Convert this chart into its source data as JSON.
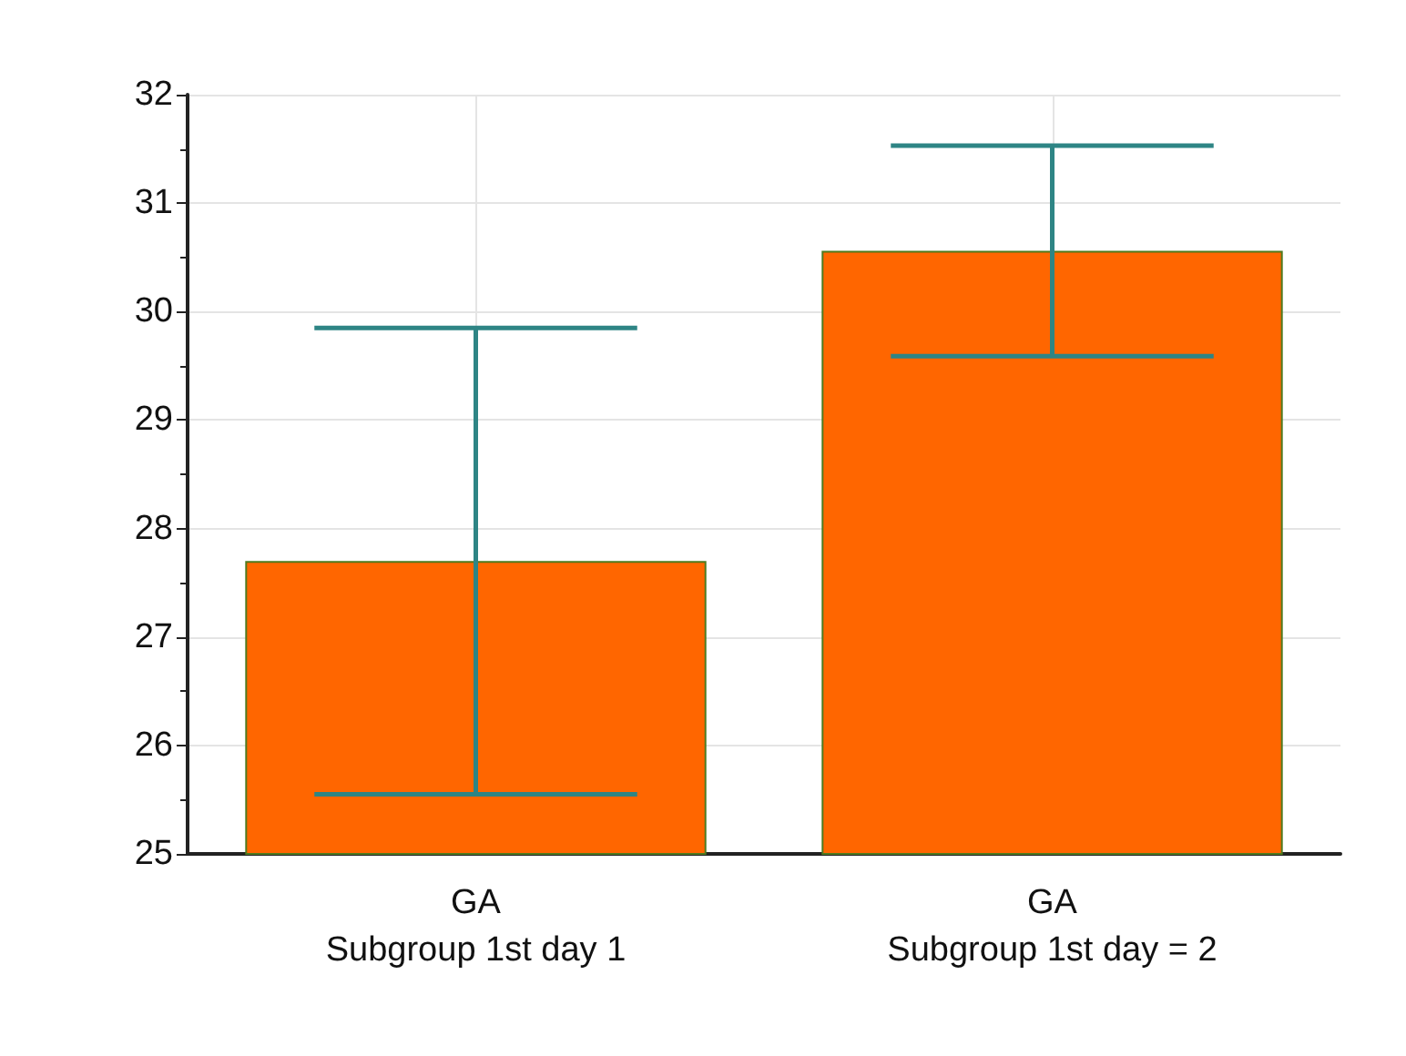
{
  "chart_data": {
    "type": "bar",
    "categories": [
      "GA\nSubgroup 1st day 1",
      "GA\nSubgroup 1st day = 2"
    ],
    "values": [
      27.7,
      30.56
    ],
    "errors": [
      2.15,
      0.97
    ],
    "color": "#ff6600",
    "ylim": [
      25,
      32
    ],
    "yticks": [
      25,
      26,
      27,
      28,
      29,
      30,
      31,
      32
    ],
    "grid": true
  }
}
